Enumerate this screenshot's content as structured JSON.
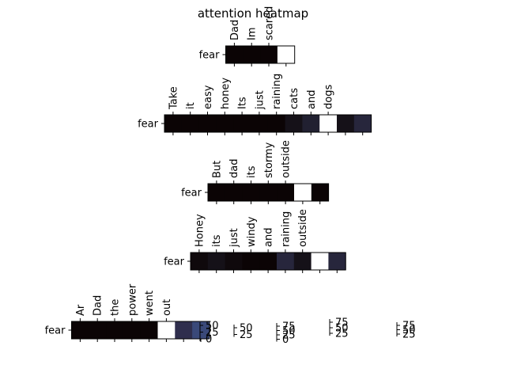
{
  "title": "attention heatmap",
  "chart_data": {
    "type": "heatmap",
    "title": "attention heatmap",
    "colormap": "mako",
    "rows": [
      {
        "ylabel": "fear",
        "tokens": [
          "Dad",
          "Im",
          "scared"
        ],
        "values": [
          0.0,
          0.0,
          0.0,
          1.0
        ]
      },
      {
        "ylabel": "fear",
        "tokens": [
          "Take",
          "it",
          "easy",
          "honey",
          "Its",
          "just",
          "raining",
          "cats",
          "and",
          "dogs"
        ],
        "values": [
          0.0,
          0.0,
          0.0,
          0.0,
          0.0,
          0.0,
          0.0,
          0.05,
          0.12,
          1.0,
          0.05,
          0.15
        ]
      },
      {
        "ylabel": "fear",
        "tokens": [
          "But",
          "dad",
          "its",
          "stormy",
          "outside"
        ],
        "values": [
          0.0,
          0.0,
          0.0,
          0.0,
          0.0,
          1.0,
          0.0
        ]
      },
      {
        "ylabel": "fear",
        "tokens": [
          "Honey",
          "its",
          "just",
          "windy",
          "and",
          "raining",
          "outside"
        ],
        "values": [
          0.02,
          0.05,
          0.02,
          0.0,
          0.0,
          0.15,
          0.05,
          1.0,
          0.15
        ]
      },
      {
        "ylabel": "fear",
        "tokens": [
          "Ar",
          "Dad",
          "the",
          "power",
          "went",
          "out"
        ],
        "values": [
          0.0,
          0.0,
          0.0,
          0.0,
          0.0,
          1.0,
          0.2,
          0.35
        ]
      }
    ],
    "colorbars": [
      {
        "ticks": [
          "50",
          "25",
          "0"
        ]
      },
      {
        "ticks": [
          "50",
          "25"
        ]
      },
      {
        "ticks": [
          "75",
          "50",
          "25",
          "0"
        ]
      },
      {
        "ticks": [
          "75",
          "50",
          "25"
        ]
      },
      {
        "ticks": [
          "75",
          "50",
          "25"
        ]
      }
    ]
  }
}
